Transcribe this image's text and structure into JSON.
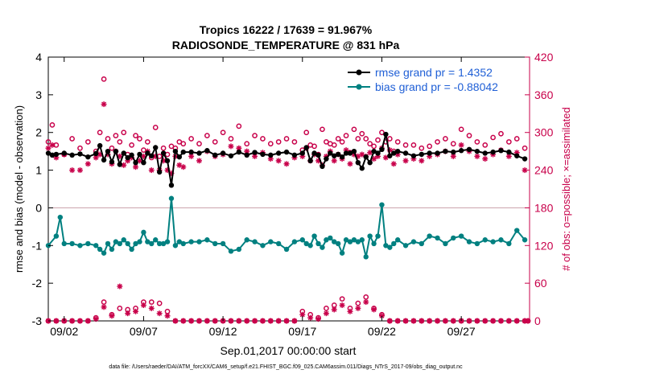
{
  "chart_data": {
    "type": "line",
    "title": "Tropics 16222 / 17639 = 91.967%",
    "subtitle": "RADIOSONDE_TEMPERATURE @ 831 hPa",
    "xlabel": "Sep.01,2017 00:00:00 start",
    "ylabel": "rmse and bias (model - observation)",
    "ylabel_right": "# of obs: o=possible; ×=assimilated",
    "footer": "data file: /Users/raeder/DAI/ATM_forcXX/CAM6_setup/f.e21.FHIST_BGC.f09_025.CAM6assim.011/Diags_NTrS_2017-09/obs_diag_output.nc",
    "xlim": [
      1.0,
      31.3
    ],
    "ylim": [
      -3,
      4
    ],
    "ylim_right": [
      0,
      420
    ],
    "x_ticks": [
      2,
      7,
      12,
      17,
      22,
      27
    ],
    "x_tick_labels": [
      "09/02",
      "09/07",
      "09/12",
      "09/17",
      "09/22",
      "09/27"
    ],
    "y_ticks": [
      -3,
      -2,
      -1,
      0,
      1,
      2,
      3,
      4
    ],
    "y_tick_labels": [
      "-3",
      "-2",
      "-1",
      "0",
      "1",
      "2",
      "3",
      "4"
    ],
    "y_right_ticks": [
      0,
      60,
      120,
      180,
      240,
      300,
      360,
      420
    ],
    "y_right_tick_labels": [
      "0",
      "60",
      "120",
      "180",
      "240",
      "300",
      "360",
      "420"
    ],
    "colors": {
      "rmse": "#000000",
      "bias": "#008080",
      "obs": "#c8004a",
      "legend_text": "#1f5fd6"
    },
    "legend": [
      {
        "name": "rmse",
        "label": "rmse grand pr = 1.4352"
      },
      {
        "name": "bias",
        "label": "bias grand pr = -0.88042"
      }
    ],
    "series": [
      {
        "name": "rmse",
        "x": [
          1.0,
          1.25,
          1.5,
          2.0,
          2.5,
          3.0,
          3.5,
          4.0,
          4.25,
          4.5,
          4.75,
          5.0,
          5.25,
          5.5,
          5.75,
          6.0,
          6.25,
          6.5,
          6.75,
          7.0,
          7.25,
          7.5,
          7.75,
          8.0,
          8.25,
          8.5,
          8.75,
          9.0,
          9.25,
          9.5,
          10.0,
          10.5,
          11.0,
          11.5,
          12.0,
          12.5,
          13.0,
          13.5,
          14.0,
          14.5,
          15.0,
          15.5,
          16.0,
          16.5,
          17.0,
          17.25,
          17.5,
          17.75,
          18.0,
          18.25,
          18.5,
          18.75,
          19.0,
          19.25,
          19.5,
          19.75,
          20.0,
          20.25,
          20.5,
          20.75,
          21.0,
          21.25,
          21.5,
          21.75,
          22.0,
          22.25,
          22.5,
          22.75,
          23.0,
          23.5,
          24.0,
          24.5,
          25.0,
          25.5,
          26.0,
          26.5,
          27.0,
          27.5,
          28.0,
          28.5,
          29.0,
          29.5,
          30.0,
          30.5,
          31.0
        ],
        "y": [
          1.45,
          1.4,
          1.42,
          1.45,
          1.4,
          1.43,
          1.35,
          1.44,
          1.65,
          1.27,
          1.5,
          1.22,
          1.5,
          1.15,
          1.45,
          1.33,
          1.4,
          1.2,
          1.42,
          1.2,
          1.45,
          1.38,
          1.6,
          0.95,
          1.45,
          1.25,
          0.6,
          1.5,
          1.35,
          1.48,
          1.48,
          1.45,
          1.52,
          1.4,
          1.45,
          1.38,
          1.48,
          1.4,
          1.47,
          1.42,
          1.4,
          1.45,
          1.48,
          1.4,
          1.45,
          1.6,
          1.25,
          1.45,
          1.4,
          1.1,
          1.3,
          1.45,
          1.38,
          1.42,
          1.35,
          1.45,
          1.45,
          1.5,
          1.2,
          1.05,
          1.35,
          1.2,
          1.5,
          1.45,
          1.55,
          1.95,
          1.38,
          1.45,
          1.5,
          1.45,
          1.38,
          1.42,
          1.45,
          1.45,
          1.5,
          1.48,
          1.52,
          1.55,
          1.5,
          1.45,
          1.48,
          1.52,
          1.48,
          1.38,
          1.3
        ]
      },
      {
        "name": "bias",
        "x": [
          1.0,
          1.5,
          1.75,
          2.0,
          2.5,
          3.0,
          3.5,
          4.0,
          4.25,
          4.5,
          4.75,
          5.0,
          5.25,
          5.5,
          5.75,
          6.0,
          6.25,
          6.5,
          6.75,
          7.0,
          7.25,
          7.5,
          7.75,
          8.0,
          8.25,
          8.5,
          8.75,
          9.0,
          9.25,
          9.5,
          10.0,
          10.5,
          11.0,
          11.5,
          12.0,
          12.5,
          13.0,
          13.5,
          14.0,
          14.5,
          15.0,
          15.5,
          16.0,
          16.5,
          17.0,
          17.25,
          17.5,
          17.75,
          18.0,
          18.25,
          18.5,
          18.75,
          19.0,
          19.25,
          19.5,
          19.75,
          20.0,
          20.25,
          20.5,
          20.75,
          21.0,
          21.25,
          21.5,
          21.75,
          22.0,
          22.25,
          22.5,
          22.75,
          23.0,
          23.5,
          24.0,
          24.5,
          25.0,
          25.5,
          26.0,
          26.5,
          27.0,
          27.5,
          28.0,
          28.5,
          29.0,
          29.5,
          30.0,
          30.5,
          31.0
        ],
        "y": [
          -1.0,
          -0.75,
          -0.25,
          -0.95,
          -0.95,
          -1.0,
          -0.95,
          -1.0,
          -1.1,
          -1.2,
          -0.95,
          -1.1,
          -0.9,
          -0.95,
          -0.85,
          -0.95,
          -1.1,
          -0.95,
          -0.9,
          -0.65,
          -0.9,
          -0.95,
          -0.85,
          -0.95,
          -0.95,
          -0.9,
          0.25,
          -1.0,
          -0.9,
          -0.95,
          -0.9,
          -0.9,
          -0.85,
          -0.95,
          -0.95,
          -1.15,
          -1.1,
          -0.85,
          -0.9,
          -1.0,
          -0.9,
          -0.95,
          -1.1,
          -0.9,
          -0.85,
          -0.95,
          -1.0,
          -0.75,
          -0.95,
          -1.05,
          -0.85,
          -0.8,
          -0.9,
          -0.95,
          -1.2,
          -0.85,
          -0.9,
          -0.85,
          -0.9,
          -0.85,
          -1.3,
          -0.75,
          -0.95,
          -0.75,
          0.08,
          -1.0,
          -1.05,
          -0.95,
          -0.85,
          -1.0,
          -0.9,
          -0.95,
          -0.75,
          -0.8,
          -0.95,
          -0.8,
          -0.75,
          -0.9,
          -0.95,
          -0.85,
          -0.9,
          -0.85,
          -0.95,
          -0.6,
          -0.85
        ]
      },
      {
        "name": "possible",
        "x": [
          1.0,
          1.25,
          1.5,
          2.0,
          2.5,
          3.0,
          3.5,
          4.0,
          4.25,
          4.5,
          4.75,
          5.0,
          5.25,
          5.5,
          5.75,
          6.0,
          6.25,
          6.5,
          6.75,
          7.0,
          7.25,
          7.5,
          7.75,
          8.0,
          8.25,
          8.5,
          8.75,
          9.0,
          9.25,
          9.5,
          10.0,
          10.5,
          11.0,
          11.5,
          12.0,
          12.5,
          13.0,
          13.5,
          14.0,
          14.5,
          15.0,
          15.5,
          16.0,
          16.5,
          17.0,
          17.25,
          17.5,
          17.75,
          18.0,
          18.25,
          18.5,
          18.75,
          19.0,
          19.25,
          19.5,
          19.75,
          20.0,
          20.25,
          20.5,
          20.75,
          21.0,
          21.25,
          21.5,
          21.75,
          22.0,
          22.25,
          22.5,
          22.75,
          23.0,
          23.5,
          24.0,
          24.5,
          25.0,
          25.5,
          26.0,
          26.5,
          27.0,
          27.5,
          28.0,
          28.5,
          29.0,
          29.5,
          30.0,
          30.5,
          31.0
        ],
        "y": [
          285,
          312,
          280,
          265,
          290,
          275,
          285,
          270,
          300,
          385,
          290,
          275,
          295,
          285,
          300,
          265,
          280,
          295,
          290,
          272,
          285,
          260,
          308,
          262,
          275,
          265,
          278,
          275,
          285,
          282,
          290,
          282,
          295,
          285,
          300,
          290,
          310,
          282,
          295,
          290,
          282,
          285,
          290,
          285,
          272,
          300,
          280,
          278,
          265,
          305,
          285,
          282,
          280,
          290,
          285,
          295,
          268,
          305,
          290,
          298,
          290,
          282,
          278,
          288,
          300,
          285,
          290,
          270,
          285,
          280,
          280,
          275,
          278,
          285,
          290,
          282,
          305,
          295,
          285,
          280,
          292,
          298,
          285,
          290,
          275
        ]
      },
      {
        "name": "assimilated",
        "x": [
          1.0,
          1.25,
          1.5,
          2.0,
          2.5,
          3.0,
          3.5,
          4.0,
          4.25,
          4.5,
          4.75,
          5.0,
          5.25,
          5.5,
          5.75,
          6.0,
          6.25,
          6.5,
          6.75,
          7.0,
          7.25,
          7.5,
          7.75,
          8.0,
          8.25,
          8.5,
          8.75,
          9.0,
          9.25,
          9.5,
          10.0,
          10.5,
          11.0,
          11.5,
          12.0,
          12.5,
          13.0,
          13.5,
          14.0,
          14.5,
          15.0,
          15.5,
          16.0,
          16.5,
          17.0,
          17.25,
          17.5,
          17.75,
          18.0,
          18.25,
          18.5,
          18.75,
          19.0,
          19.25,
          19.5,
          19.75,
          20.0,
          20.25,
          20.5,
          20.75,
          21.0,
          21.25,
          21.5,
          21.75,
          22.0,
          22.25,
          22.5,
          22.75,
          23.0,
          23.5,
          24.0,
          24.5,
          25.0,
          25.5,
          26.0,
          26.5,
          27.0,
          27.5,
          28.0,
          28.5,
          29.0,
          29.5,
          30.0,
          30.5,
          31.0
        ],
        "y": [
          275,
          280,
          260,
          265,
          240,
          240,
          250,
          260,
          265,
          345,
          265,
          250,
          270,
          262,
          248,
          255,
          260,
          245,
          255,
          262,
          270,
          240,
          262,
          240,
          255,
          240,
          235,
          262,
          248,
          245,
          262,
          255,
          270,
          262,
          265,
          278,
          275,
          270,
          262,
          268,
          258,
          255,
          250,
          260,
          262,
          275,
          255,
          265,
          255,
          248,
          262,
          270,
          255,
          265,
          258,
          272,
          250,
          265,
          262,
          265,
          262,
          268,
          258,
          262,
          275,
          260,
          272,
          250,
          265,
          255,
          258,
          255,
          262,
          265,
          270,
          262,
          280,
          270,
          262,
          258,
          265,
          272,
          262,
          268,
          240
        ]
      },
      {
        "name": "possible-low",
        "x": [
          1,
          1.5,
          2,
          2.5,
          3,
          3.5,
          4,
          4.5,
          5,
          5.5,
          6,
          6.5,
          7,
          7.5,
          8,
          8.5,
          9,
          9.5,
          10,
          10.5,
          11,
          11.5,
          12,
          12.5,
          13,
          13.5,
          14,
          14.5,
          15,
          15.5,
          16,
          16.5,
          17,
          17.5,
          18,
          18.5,
          19,
          19.5,
          20,
          20.5,
          21,
          21.5,
          22,
          22.5,
          23,
          23.5,
          24,
          24.5,
          25,
          25.5,
          26,
          26.5,
          27,
          27.5,
          28,
          28.5,
          29,
          29.5,
          30,
          30.5,
          31,
          31.2
        ],
        "y": [
          0,
          0,
          0,
          0,
          0,
          0,
          5,
          30,
          10,
          20,
          18,
          20,
          30,
          30,
          28,
          15,
          0,
          0,
          0,
          0,
          0,
          0,
          0,
          0,
          0,
          0,
          0,
          0,
          0,
          0,
          0,
          0,
          15,
          10,
          5,
          20,
          25,
          35,
          20,
          28,
          38,
          20,
          10,
          0,
          0,
          0,
          0,
          0,
          0,
          0,
          0,
          0,
          0,
          0,
          0,
          0,
          0,
          0,
          0,
          0,
          0,
          0
        ]
      },
      {
        "name": "assimilated-low",
        "x": [
          1,
          1.5,
          2,
          2.5,
          3,
          3.5,
          4,
          4.5,
          5,
          5.5,
          6,
          6.5,
          7,
          7.5,
          8,
          8.5,
          9,
          9.5,
          10,
          10.5,
          11,
          11.5,
          12,
          12.5,
          13,
          13.5,
          14,
          14.5,
          15,
          15.5,
          16,
          16.5,
          17,
          17.5,
          18,
          18.5,
          19,
          19.5,
          20,
          20.5,
          21,
          21.5,
          22,
          22.5,
          23,
          23.5,
          24,
          24.5,
          25,
          25.5,
          26,
          26.5,
          27,
          27.5,
          28,
          28.5,
          29,
          29.5,
          30,
          30.5,
          31,
          31.2
        ],
        "y": [
          0,
          0,
          0,
          0,
          0,
          0,
          3,
          22,
          8,
          55,
          12,
          15,
          25,
          20,
          12,
          8,
          0,
          0,
          0,
          0,
          0,
          0,
          0,
          0,
          0,
          0,
          0,
          0,
          0,
          0,
          0,
          0,
          10,
          5,
          3,
          12,
          18,
          25,
          15,
          20,
          30,
          18,
          8,
          0,
          0,
          0,
          0,
          0,
          0,
          0,
          0,
          0,
          0,
          0,
          0,
          0,
          0,
          0,
          0,
          0,
          0,
          0
        ]
      }
    ]
  }
}
